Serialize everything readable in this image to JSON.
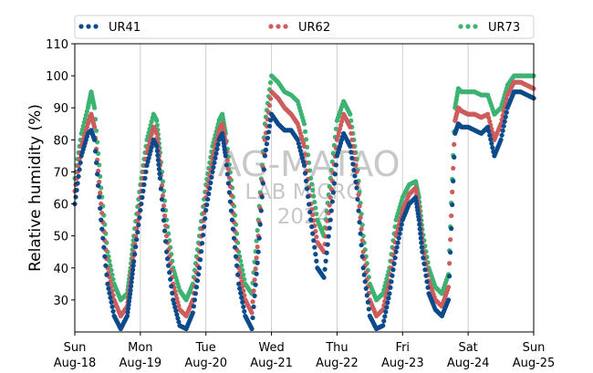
{
  "chart_data": {
    "type": "scatter",
    "ylabel": "Relative humidity (%)",
    "xlabel": "",
    "ylim": [
      20,
      110
    ],
    "yticks": [
      30,
      40,
      50,
      60,
      70,
      80,
      90,
      100,
      110
    ],
    "xlim": [
      0,
      7
    ],
    "xticks": [
      {
        "day": "Sun",
        "date": "Aug-18"
      },
      {
        "day": "Mon",
        "date": "Aug-19"
      },
      {
        "day": "Tue",
        "date": "Aug-20"
      },
      {
        "day": "Wed",
        "date": "Aug-21"
      },
      {
        "day": "Thu",
        "date": "Aug-22"
      },
      {
        "day": "Fri",
        "date": "Aug-23"
      },
      {
        "day": "Sat",
        "date": "Aug-24"
      },
      {
        "day": "Sun",
        "date": "Aug-25"
      }
    ],
    "grid": "vertical",
    "legend_position": "top",
    "watermark": [
      "IAG-MATAO",
      "LAB MICRO",
      "2024"
    ],
    "series": [
      {
        "name": "UR41",
        "color": "#0b4a8b",
        "x": [
          0,
          0.1,
          0.2,
          0.25,
          0.3,
          0.4,
          0.5,
          0.6,
          0.7,
          0.8,
          0.85,
          0.9,
          1.0,
          1.1,
          1.2,
          1.25,
          1.3,
          1.4,
          1.5,
          1.6,
          1.7,
          1.8,
          1.9,
          2.0,
          2.1,
          2.2,
          2.25,
          2.3,
          2.4,
          2.5,
          2.6,
          2.7,
          2.8,
          2.9,
          3.0,
          3.1,
          3.2,
          3.3,
          3.4,
          3.5,
          3.6,
          3.7,
          3.8,
          3.9,
          4.0,
          4.1,
          4.2,
          4.3,
          4.4,
          4.5,
          4.6,
          4.7,
          4.8,
          4.9,
          5.0,
          5.1,
          5.2,
          5.25,
          5.3,
          5.4,
          5.5,
          5.6,
          5.7,
          5.8,
          5.85,
          5.9,
          6.0,
          6.1,
          6.2,
          6.3,
          6.4,
          6.5,
          6.6,
          6.7,
          6.8,
          6.9,
          7.0
        ],
        "values": [
          60,
          75,
          82,
          83,
          80,
          55,
          35,
          25,
          21,
          25,
          33,
          42,
          58,
          72,
          80,
          78,
          68,
          45,
          30,
          22,
          21,
          26,
          40,
          58,
          70,
          80,
          82,
          75,
          55,
          35,
          25,
          21,
          45,
          75,
          88,
          85,
          83,
          83,
          80,
          72,
          55,
          40,
          37,
          55,
          75,
          82,
          78,
          65,
          40,
          25,
          21,
          22,
          32,
          45,
          55,
          60,
          62,
          55,
          45,
          32,
          27,
          25,
          30,
          82,
          85,
          84,
          84,
          83,
          82,
          84,
          75,
          80,
          90,
          95,
          95,
          94,
          93
        ]
      },
      {
        "name": "UR62",
        "color": "#cd5c5c",
        "x": [
          0,
          0.1,
          0.2,
          0.25,
          0.3,
          0.4,
          0.5,
          0.6,
          0.7,
          0.8,
          0.85,
          0.9,
          1.0,
          1.1,
          1.2,
          1.25,
          1.3,
          1.4,
          1.5,
          1.6,
          1.7,
          1.8,
          1.9,
          2.0,
          2.1,
          2.2,
          2.25,
          2.3,
          2.4,
          2.5,
          2.6,
          2.7,
          2.8,
          2.9,
          3.0,
          3.1,
          3.2,
          3.3,
          3.4,
          3.5,
          3.6,
          3.7,
          3.8,
          3.9,
          4.0,
          4.1,
          4.2,
          4.3,
          4.4,
          4.5,
          4.6,
          4.7,
          4.8,
          4.9,
          5.0,
          5.1,
          5.2,
          5.25,
          5.3,
          5.4,
          5.5,
          5.6,
          5.7,
          5.8,
          5.85,
          5.9,
          6.0,
          6.1,
          6.2,
          6.3,
          6.4,
          6.5,
          6.6,
          6.7,
          6.8,
          6.9,
          7.0
        ],
        "values": [
          64,
          78,
          85,
          88,
          84,
          60,
          40,
          30,
          25,
          28,
          36,
          45,
          62,
          76,
          84,
          82,
          72,
          50,
          35,
          27,
          25,
          30,
          45,
          62,
          74,
          83,
          85,
          79,
          60,
          40,
          30,
          26,
          50,
          80,
          95,
          93,
          90,
          88,
          85,
          78,
          60,
          48,
          45,
          62,
          80,
          88,
          84,
          70,
          45,
          30,
          25,
          27,
          36,
          50,
          58,
          63,
          65,
          58,
          48,
          36,
          30,
          28,
          34,
          86,
          90,
          89,
          88,
          88,
          87,
          88,
          80,
          85,
          94,
          98,
          98,
          97,
          96
        ]
      },
      {
        "name": "UR73",
        "color": "#3cb371",
        "x": [
          0,
          0.1,
          0.2,
          0.25,
          0.3,
          0.4,
          0.5,
          0.6,
          0.7,
          0.8,
          0.85,
          0.9,
          1.0,
          1.1,
          1.2,
          1.25,
          1.3,
          1.4,
          1.5,
          1.6,
          1.7,
          1.8,
          1.9,
          2.0,
          2.1,
          2.2,
          2.25,
          2.3,
          2.4,
          2.5,
          2.6,
          2.7,
          2.8,
          2.9,
          3.0,
          3.1,
          3.2,
          3.3,
          3.4,
          3.5,
          3.6,
          3.7,
          3.8,
          3.9,
          4.0,
          4.1,
          4.2,
          4.3,
          4.4,
          4.5,
          4.6,
          4.7,
          4.8,
          4.9,
          5.0,
          5.1,
          5.2,
          5.25,
          5.3,
          5.4,
          5.5,
          5.6,
          5.7,
          5.8,
          5.85,
          5.9,
          6.0,
          6.1,
          6.2,
          6.3,
          6.4,
          6.5,
          6.6,
          6.7,
          6.8,
          6.9,
          7.0
        ],
        "values": [
          68,
          82,
          90,
          95,
          90,
          65,
          45,
          35,
          30,
          32,
          40,
          50,
          66,
          80,
          88,
          86,
          76,
          55,
          40,
          33,
          30,
          35,
          50,
          66,
          78,
          86,
          88,
          82,
          65,
          45,
          35,
          32,
          55,
          85,
          100,
          98,
          95,
          94,
          92,
          85,
          68,
          55,
          50,
          68,
          86,
          92,
          88,
          74,
          50,
          35,
          30,
          32,
          40,
          55,
          62,
          66,
          67,
          62,
          52,
          40,
          34,
          32,
          38,
          90,
          96,
          95,
          95,
          95,
          94,
          94,
          88,
          90,
          97,
          100,
          100,
          100,
          100
        ]
      }
    ]
  }
}
